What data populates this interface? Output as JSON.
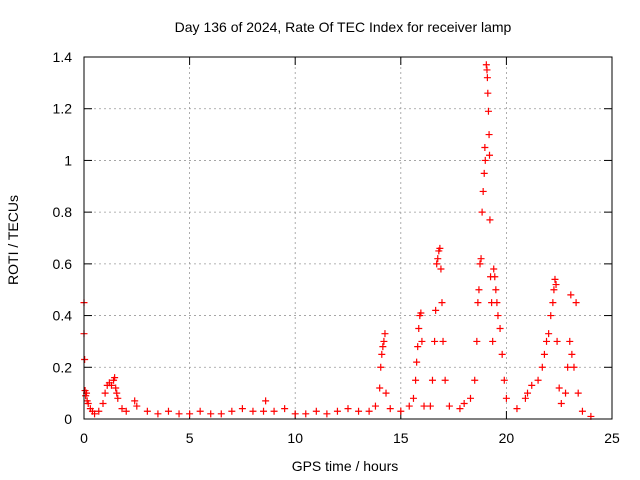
{
  "chart_data": {
    "type": "scatter",
    "title": "Day 136 of 2024, Rate Of TEC Index for receiver lamp",
    "xlabel": "GPS time / hours",
    "ylabel": "ROTI / TECUs",
    "xlim": [
      0,
      25
    ],
    "ylim": [
      0,
      1.4
    ],
    "xticks": [
      0,
      5,
      10,
      15,
      20,
      25
    ],
    "yticks": [
      0,
      0.2,
      0.4,
      0.6,
      0.8,
      1,
      1.2,
      1.4
    ],
    "xtick_labels": [
      "0",
      "5",
      "10",
      "15",
      "20",
      "25"
    ],
    "ytick_labels": [
      "0",
      "0.2",
      "0.4",
      "0.6",
      "0.8",
      "1",
      "1.2",
      "1.4"
    ],
    "grid": true,
    "marker": "+",
    "color": "#ff0000",
    "series": [
      {
        "name": "ROTI",
        "points": [
          [
            0.0,
            0.45
          ],
          [
            0.0,
            0.33
          ],
          [
            0.03,
            0.23
          ],
          [
            0.05,
            0.11
          ],
          [
            0.08,
            0.09
          ],
          [
            0.12,
            0.1
          ],
          [
            0.15,
            0.07
          ],
          [
            0.2,
            0.06
          ],
          [
            0.3,
            0.04
          ],
          [
            0.4,
            0.03
          ],
          [
            0.5,
            0.02
          ],
          [
            0.7,
            0.03
          ],
          [
            0.9,
            0.06
          ],
          [
            1.0,
            0.1
          ],
          [
            1.1,
            0.13
          ],
          [
            1.2,
            0.14
          ],
          [
            1.3,
            0.13
          ],
          [
            1.4,
            0.15
          ],
          [
            1.45,
            0.16
          ],
          [
            1.5,
            0.12
          ],
          [
            1.55,
            0.1
          ],
          [
            1.6,
            0.08
          ],
          [
            1.8,
            0.04
          ],
          [
            2.0,
            0.03
          ],
          [
            2.4,
            0.07
          ],
          [
            2.5,
            0.05
          ],
          [
            3.0,
            0.03
          ],
          [
            3.5,
            0.02
          ],
          [
            4.0,
            0.03
          ],
          [
            4.5,
            0.02
          ],
          [
            5.0,
            0.02
          ],
          [
            5.5,
            0.03
          ],
          [
            6.0,
            0.02
          ],
          [
            6.5,
            0.02
          ],
          [
            7.0,
            0.03
          ],
          [
            7.5,
            0.04
          ],
          [
            8.0,
            0.03
          ],
          [
            8.5,
            0.03
          ],
          [
            8.6,
            0.07
          ],
          [
            9.0,
            0.03
          ],
          [
            9.5,
            0.04
          ],
          [
            10.0,
            0.02
          ],
          [
            10.5,
            0.02
          ],
          [
            11.0,
            0.03
          ],
          [
            11.5,
            0.02
          ],
          [
            12.0,
            0.03
          ],
          [
            12.5,
            0.04
          ],
          [
            13.0,
            0.03
          ],
          [
            13.5,
            0.03
          ],
          [
            13.8,
            0.05
          ],
          [
            14.0,
            0.12
          ],
          [
            14.05,
            0.2
          ],
          [
            14.1,
            0.25
          ],
          [
            14.15,
            0.28
          ],
          [
            14.2,
            0.3
          ],
          [
            14.25,
            0.33
          ],
          [
            14.3,
            0.1
          ],
          [
            14.5,
            0.04
          ],
          [
            15.0,
            0.03
          ],
          [
            15.4,
            0.05
          ],
          [
            15.6,
            0.08
          ],
          [
            15.7,
            0.15
          ],
          [
            15.75,
            0.22
          ],
          [
            15.8,
            0.28
          ],
          [
            15.85,
            0.35
          ],
          [
            15.9,
            0.4
          ],
          [
            15.95,
            0.41
          ],
          [
            16.0,
            0.3
          ],
          [
            16.1,
            0.05
          ],
          [
            16.4,
            0.05
          ],
          [
            16.5,
            0.15
          ],
          [
            16.6,
            0.3
          ],
          [
            16.65,
            0.42
          ],
          [
            16.7,
            0.6
          ],
          [
            16.75,
            0.62
          ],
          [
            16.8,
            0.65
          ],
          [
            16.85,
            0.66
          ],
          [
            16.9,
            0.58
          ],
          [
            16.95,
            0.45
          ],
          [
            17.0,
            0.3
          ],
          [
            17.1,
            0.15
          ],
          [
            17.3,
            0.05
          ],
          [
            17.8,
            0.04
          ],
          [
            18.0,
            0.06
          ],
          [
            18.3,
            0.08
          ],
          [
            18.5,
            0.15
          ],
          [
            18.6,
            0.3
          ],
          [
            18.65,
            0.45
          ],
          [
            18.7,
            0.5
          ],
          [
            18.75,
            0.6
          ],
          [
            18.8,
            0.62
          ],
          [
            18.85,
            0.8
          ],
          [
            18.9,
            0.88
          ],
          [
            18.95,
            0.95
          ],
          [
            18.98,
            1.05
          ],
          [
            19.0,
            1.0
          ],
          [
            19.05,
            1.37
          ],
          [
            19.08,
            1.35
          ],
          [
            19.1,
            1.32
          ],
          [
            19.12,
            1.26
          ],
          [
            19.15,
            1.19
          ],
          [
            19.18,
            1.1
          ],
          [
            19.2,
            1.02
          ],
          [
            19.22,
            0.77
          ],
          [
            19.25,
            0.55
          ],
          [
            19.3,
            0.45
          ],
          [
            19.35,
            0.3
          ],
          [
            19.4,
            0.58
          ],
          [
            19.45,
            0.55
          ],
          [
            19.5,
            0.5
          ],
          [
            19.55,
            0.45
          ],
          [
            19.6,
            0.4
          ],
          [
            19.7,
            0.35
          ],
          [
            19.8,
            0.25
          ],
          [
            19.9,
            0.15
          ],
          [
            20.0,
            0.08
          ],
          [
            20.5,
            0.04
          ],
          [
            20.9,
            0.08
          ],
          [
            21.0,
            0.1
          ],
          [
            21.2,
            0.13
          ],
          [
            21.5,
            0.15
          ],
          [
            21.7,
            0.2
          ],
          [
            21.8,
            0.25
          ],
          [
            21.9,
            0.3
          ],
          [
            22.0,
            0.33
          ],
          [
            22.1,
            0.4
          ],
          [
            22.2,
            0.45
          ],
          [
            22.25,
            0.5
          ],
          [
            22.3,
            0.54
          ],
          [
            22.35,
            0.52
          ],
          [
            22.4,
            0.3
          ],
          [
            22.5,
            0.12
          ],
          [
            22.6,
            0.06
          ],
          [
            22.8,
            0.1
          ],
          [
            22.9,
            0.2
          ],
          [
            23.0,
            0.3
          ],
          [
            23.05,
            0.48
          ],
          [
            23.1,
            0.25
          ],
          [
            23.2,
            0.2
          ],
          [
            23.3,
            0.45
          ],
          [
            23.4,
            0.1
          ],
          [
            23.6,
            0.03
          ],
          [
            24.0,
            0.01
          ]
        ]
      }
    ]
  }
}
